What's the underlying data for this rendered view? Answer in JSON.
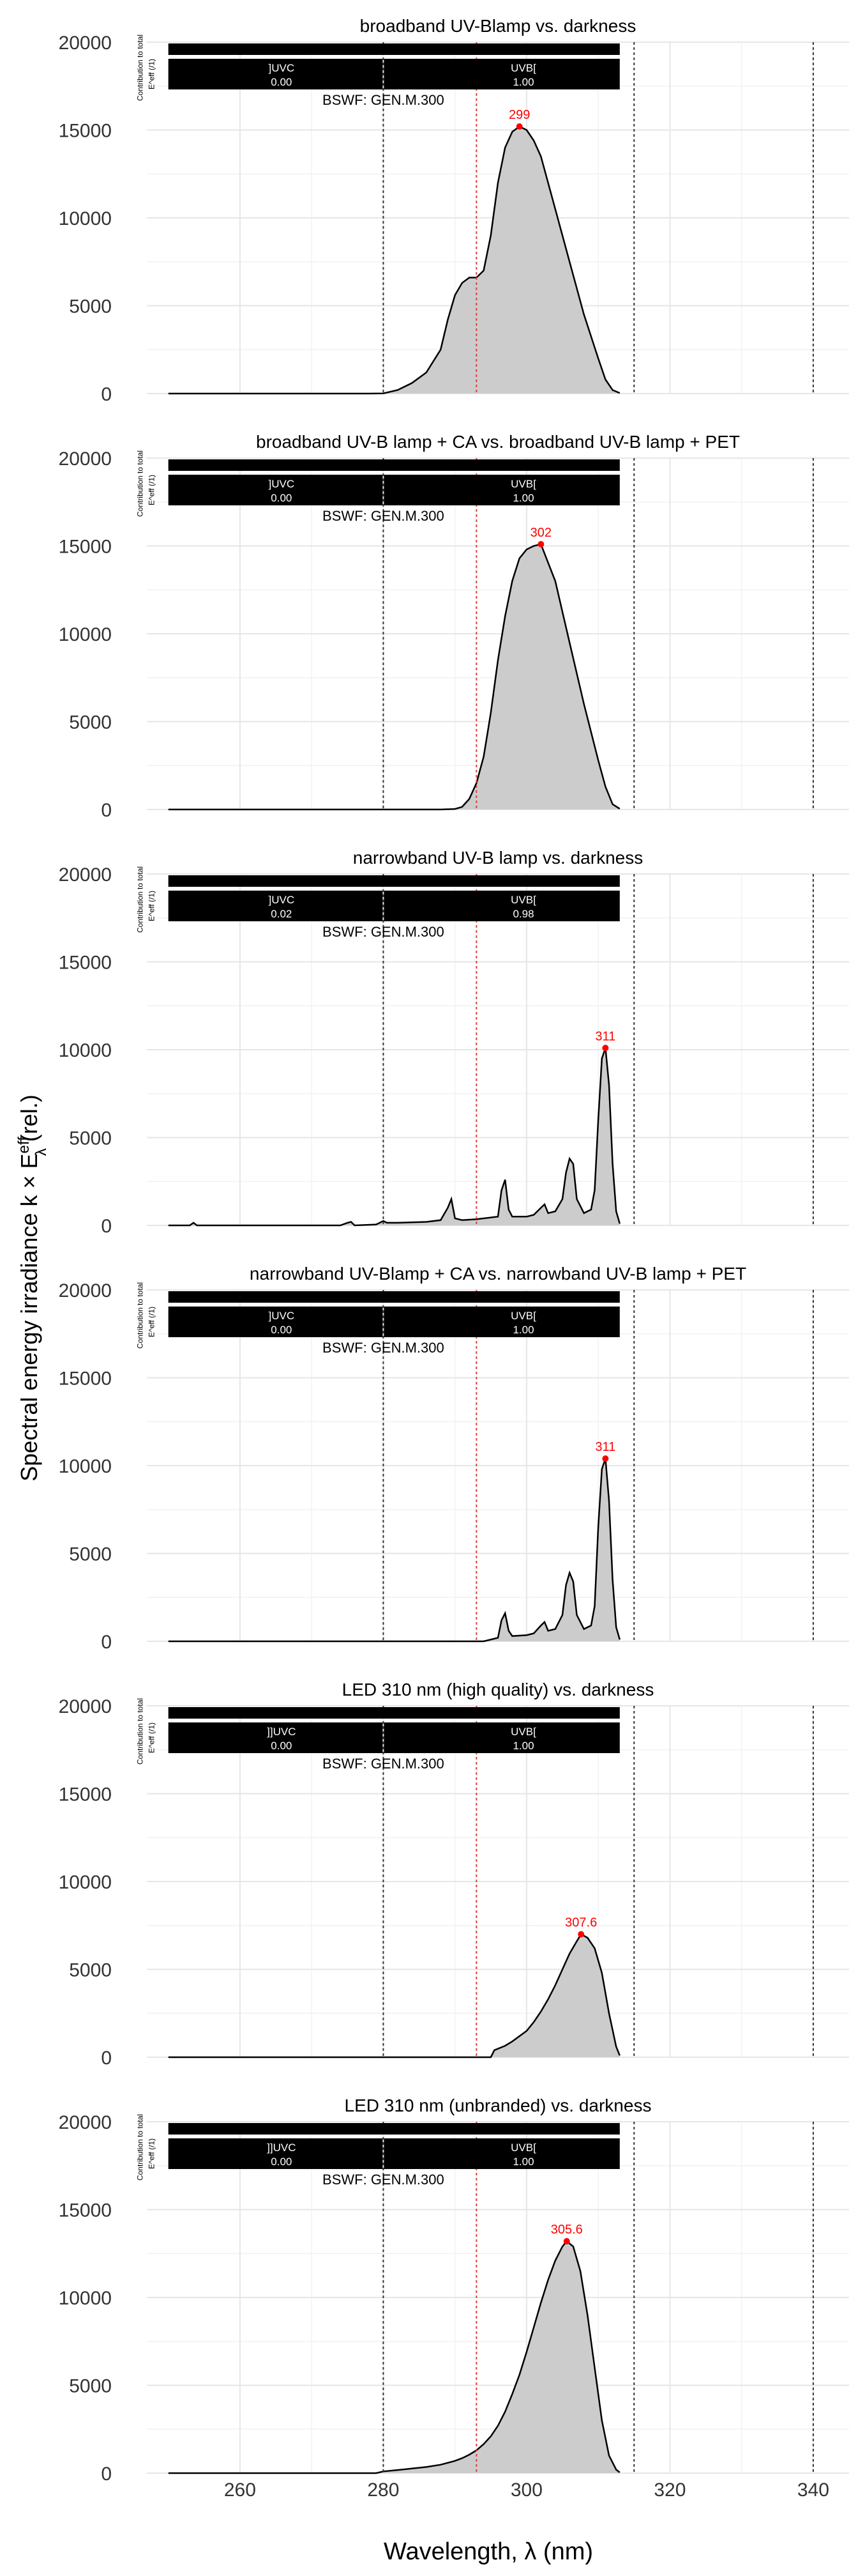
{
  "figure": {
    "ylabel_prefix": "Spectral energy irradiance  k × E",
    "ylabel_sup": "eff",
    "ylabel_sub": "λ",
    "ylabel_suffix": "  (rel.)",
    "xlabel": "Wavelength, λ (nm)",
    "colors": {
      "area_fill": "#cccccc",
      "line": "#000000",
      "peak": "#ff0000",
      "band_box": "#000000",
      "band_text": "#ffffff",
      "grid_major": "#e6e6e6",
      "grid_minor": "#f2f2f2",
      "vline": "#333333",
      "vline_red": "#e03c3c"
    }
  },
  "chart_data": [
    {
      "type": "area",
      "title": "broadband UV-Blamp vs. darkness",
      "xlim": [
        247,
        345
      ],
      "ylim": [
        0,
        20000
      ],
      "xticks": [
        260,
        280,
        300,
        320,
        340
      ],
      "yticks": [
        0,
        5000,
        10000,
        15000,
        20000
      ],
      "vlines": [
        280,
        293,
        315,
        340
      ],
      "vline_red": 293,
      "peak": {
        "x": 299,
        "y": 15200,
        "label": "299"
      },
      "bsw_label": "BSWF: GEN.M.300",
      "contribution_label": "Contribution to total",
      "contribution_sub": "E^eff (/1)",
      "bands": [
        {
          "name": "]UVC",
          "value": "0.00"
        },
        {
          "name": "UVB[",
          "value": "1.00"
        }
      ],
      "x": [
        250,
        278,
        280,
        282,
        284,
        286,
        288,
        289,
        290,
        291,
        292,
        293,
        294,
        295,
        296,
        297,
        298,
        299,
        300,
        301,
        302,
        304,
        306,
        308,
        310,
        311,
        312,
        313
      ],
      "y": [
        0,
        0,
        10,
        200,
        600,
        1200,
        2500,
        4200,
        5600,
        6300,
        6600,
        6600,
        7000,
        9000,
        12000,
        14000,
        14900,
        15200,
        15000,
        14400,
        13500,
        10500,
        7500,
        4500,
        2000,
        800,
        200,
        30
      ]
    },
    {
      "type": "area",
      "title": "broadband UV-B lamp + CA vs. broadband UV-B lamp + PET",
      "xlim": [
        247,
        345
      ],
      "ylim": [
        0,
        20000
      ],
      "xticks": [
        260,
        280,
        300,
        320,
        340
      ],
      "yticks": [
        0,
        5000,
        10000,
        15000,
        20000
      ],
      "vlines": [
        280,
        293,
        315,
        340
      ],
      "vline_red": 293,
      "peak": {
        "x": 302,
        "y": 15100,
        "label": "302"
      },
      "bsw_label": "BSWF: GEN.M.300",
      "contribution_label": "Contribution to total",
      "contribution_sub": "E^eff (/1)",
      "bands": [
        {
          "name": "]UVC",
          "value": "0.00"
        },
        {
          "name": "UVB[",
          "value": "1.00"
        }
      ],
      "x": [
        250,
        288,
        290,
        291,
        292,
        293,
        294,
        295,
        296,
        297,
        298,
        299,
        300,
        301,
        302,
        304,
        306,
        308,
        310,
        311,
        312,
        313
      ],
      "y": [
        0,
        0,
        30,
        150,
        600,
        1500,
        3000,
        5500,
        8500,
        11000,
        13000,
        14300,
        14800,
        15000,
        15100,
        13000,
        9500,
        6000,
        2800,
        1300,
        300,
        40
      ]
    },
    {
      "type": "area",
      "title": "narrowband UV-B lamp vs. darkness",
      "xlim": [
        247,
        345
      ],
      "ylim": [
        0,
        20000
      ],
      "xticks": [
        260,
        280,
        300,
        320,
        340
      ],
      "yticks": [
        0,
        5000,
        10000,
        15000,
        20000
      ],
      "vlines": [
        280,
        293,
        315,
        340
      ],
      "vline_red": 293,
      "peak": {
        "x": 311,
        "y": 10100,
        "label": "311"
      },
      "bsw_label": "BSWF: GEN.M.300",
      "contribution_label": "Contribution to total",
      "contribution_sub": "E^eff (/1)",
      "bands": [
        {
          "name": "]UVC",
          "value": "0.02"
        },
        {
          "name": "UVB[",
          "value": "0.98"
        }
      ],
      "x": [
        250,
        253,
        253.5,
        254,
        256,
        260,
        265,
        270,
        274,
        275,
        275.5,
        276,
        279,
        280,
        280.5,
        282,
        286,
        288,
        289,
        289.5,
        290,
        291,
        293,
        294,
        296,
        296.5,
        297,
        297.5,
        298,
        300,
        301,
        302,
        302.5,
        303,
        304,
        305,
        305.5,
        306,
        306.5,
        307,
        308,
        309,
        309.5,
        310,
        310.5,
        311,
        311.5,
        312,
        312.5,
        313
      ],
      "y": [
        0,
        0,
        150,
        0,
        0,
        0,
        0,
        0,
        0,
        150,
        200,
        0,
        50,
        250,
        150,
        150,
        200,
        300,
        1000,
        1500,
        400,
        300,
        350,
        400,
        500,
        2000,
        2600,
        900,
        500,
        500,
        600,
        1000,
        1200,
        700,
        800,
        1500,
        3000,
        3800,
        3500,
        1500,
        700,
        900,
        2000,
        6000,
        9500,
        10100,
        8000,
        3500,
        800,
        100
      ]
    },
    {
      "type": "area",
      "title": "narrowband UV-Blamp + CA vs. narrowband UV-B lamp + PET",
      "xlim": [
        247,
        345
      ],
      "ylim": [
        0,
        20000
      ],
      "xticks": [
        260,
        280,
        300,
        320,
        340
      ],
      "yticks": [
        0,
        5000,
        10000,
        15000,
        20000
      ],
      "vlines": [
        280,
        293,
        315,
        340
      ],
      "vline_red": 293,
      "peak": {
        "x": 311,
        "y": 10400,
        "label": "311"
      },
      "bsw_label": "BSWF: GEN.M.300",
      "contribution_label": "Contribution to total",
      "contribution_sub": "E^eff (/1)",
      "bands": [
        {
          "name": "]UVC",
          "value": "0.00"
        },
        {
          "name": "UVB[",
          "value": "1.00"
        }
      ],
      "x": [
        250,
        294,
        296,
        296.5,
        297,
        297.5,
        298,
        300,
        301,
        302,
        302.5,
        303,
        304,
        305,
        305.5,
        306,
        306.5,
        307,
        308,
        309,
        309.5,
        310,
        310.5,
        311,
        311.5,
        312,
        312.5,
        313
      ],
      "y": [
        0,
        0,
        200,
        1200,
        1600,
        600,
        300,
        350,
        450,
        900,
        1100,
        600,
        700,
        1500,
        3200,
        3900,
        3400,
        1500,
        700,
        900,
        2000,
        6500,
        9800,
        10400,
        8000,
        3500,
        800,
        100
      ]
    },
    {
      "type": "area",
      "title": "LED 310 nm (high quality) vs. darkness",
      "xlim": [
        247,
        345
      ],
      "ylim": [
        0,
        20000
      ],
      "xticks": [
        260,
        280,
        300,
        320,
        340
      ],
      "yticks": [
        0,
        5000,
        10000,
        15000,
        20000
      ],
      "vlines": [
        280,
        293,
        315,
        340
      ],
      "vline_red": 293,
      "peak": {
        "x": 307.6,
        "y": 7000,
        "label": "307.6"
      },
      "bsw_label": "BSWF: GEN.M.300",
      "contribution_label": "Contribution to total",
      "contribution_sub": "E^eff (/1)",
      "bands": [
        {
          "name": "]]UVC",
          "value": "0.00"
        },
        {
          "name": "UVB[",
          "value": "1.00"
        }
      ],
      "x": [
        250,
        295,
        295.5,
        297,
        298,
        299,
        300,
        301,
        302,
        303,
        304,
        305,
        306,
        307,
        307.6,
        308.5,
        309.5,
        310.5,
        311.5,
        312.5,
        313
      ],
      "y": [
        0,
        0,
        400,
        650,
        900,
        1200,
        1500,
        2000,
        2600,
        3300,
        4100,
        5000,
        5900,
        6600,
        7000,
        6800,
        6200,
        4800,
        2500,
        600,
        100
      ]
    },
    {
      "type": "area",
      "title": "LED 310 nm (unbranded) vs. darkness",
      "xlim": [
        247,
        345
      ],
      "ylim": [
        0,
        20000
      ],
      "xticks": [
        260,
        280,
        300,
        320,
        340
      ],
      "yticks": [
        0,
        5000,
        10000,
        15000,
        20000
      ],
      "vlines": [
        280,
        293,
        315,
        340
      ],
      "vline_red": 293,
      "peak": {
        "x": 305.6,
        "y": 13200,
        "label": "305.6"
      },
      "bsw_label": "BSWF: GEN.M.300",
      "contribution_label": "Contribution to total",
      "contribution_sub": "E^eff (/1)",
      "bands": [
        {
          "name": "]]UVC",
          "value": "0.00"
        },
        {
          "name": "UVB[",
          "value": "1.00"
        }
      ],
      "x": [
        250,
        279,
        280,
        282,
        284,
        286,
        288,
        290,
        291,
        292,
        293,
        294,
        295,
        296,
        297,
        298,
        299,
        300,
        301,
        302,
        303,
        304,
        305,
        305.6,
        306.5,
        307.5,
        308.5,
        309.5,
        310.5,
        311.5,
        312.5,
        313
      ],
      "y": [
        0,
        0,
        100,
        180,
        260,
        350,
        480,
        700,
        850,
        1050,
        1300,
        1650,
        2100,
        2700,
        3500,
        4500,
        5600,
        6900,
        8300,
        9700,
        11000,
        12100,
        12900,
        13200,
        12900,
        11500,
        9000,
        6000,
        3000,
        1000,
        200,
        40
      ]
    }
  ]
}
